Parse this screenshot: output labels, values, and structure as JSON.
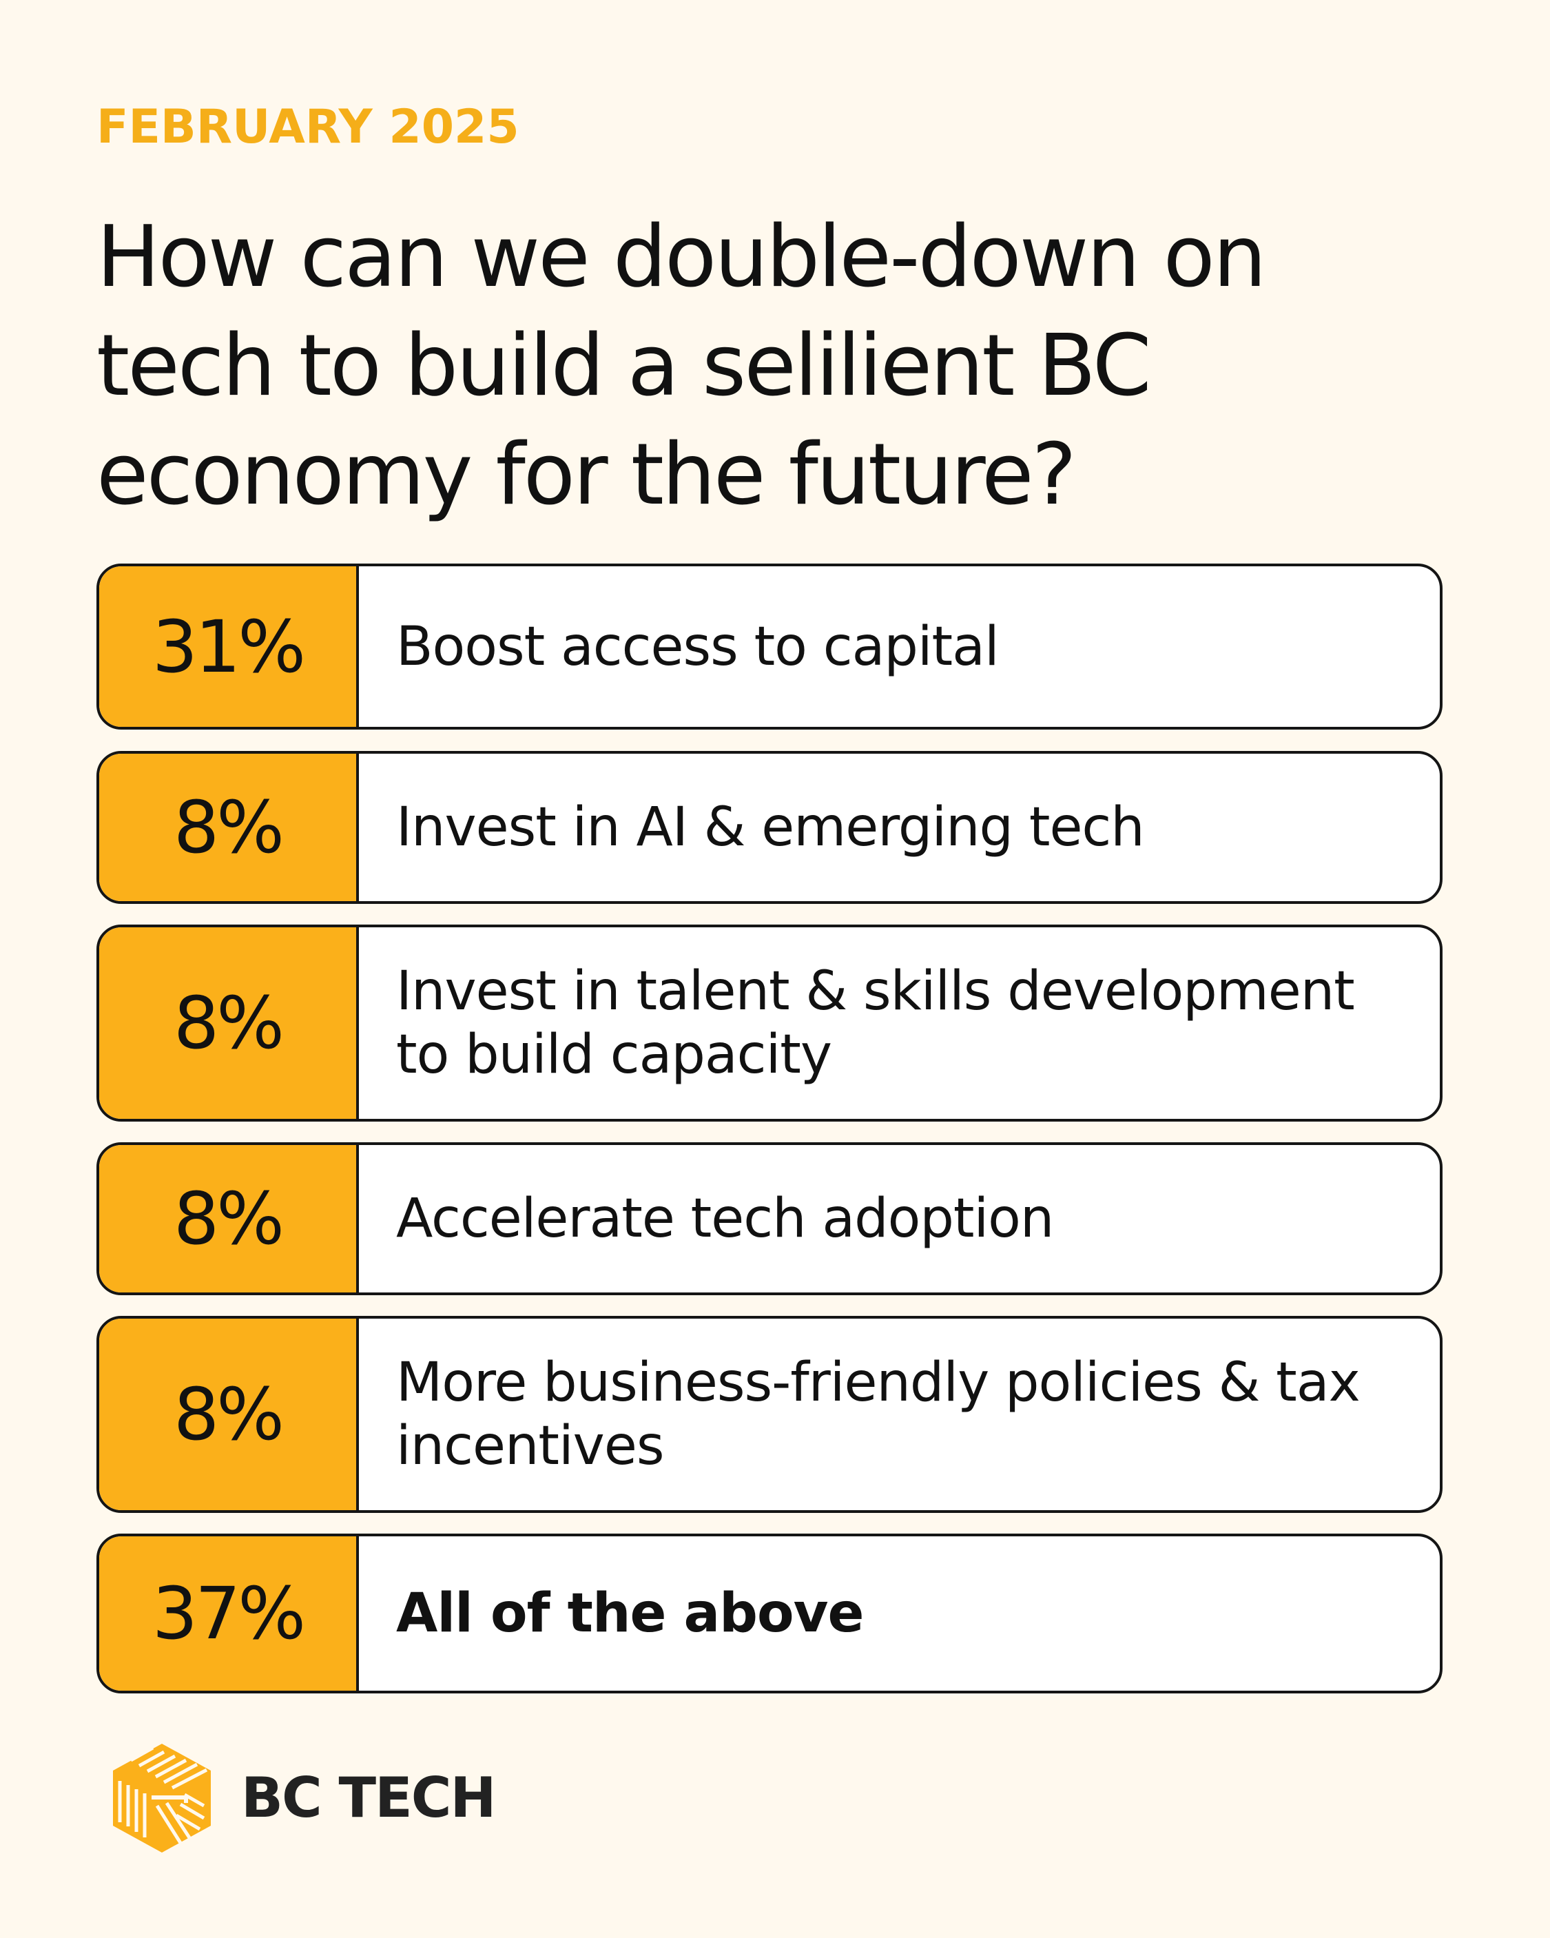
{
  "header": {
    "date": "FEBRUARY 2025",
    "title": "How can we double-down on tech to build a selilient BC economy for the future?"
  },
  "chart_data": {
    "type": "table",
    "title": "How can we double-down on tech to build a selilient BC economy for the future?",
    "columns": [
      "percent",
      "option"
    ],
    "rows": [
      {
        "percent_label": "31%",
        "value": 31,
        "label": "Boost access to capital",
        "bold": false
      },
      {
        "percent_label": "8%",
        "value": 8,
        "label": "Invest in AI & emerging tech",
        "bold": false
      },
      {
        "percent_label": "8%",
        "value": 8,
        "label": "Invest in talent & skills development to build capacity",
        "bold": false
      },
      {
        "percent_label": "8%",
        "value": 8,
        "label": "Accelerate tech adoption",
        "bold": false
      },
      {
        "percent_label": "8%",
        "value": 8,
        "label": "More business-friendly policies & tax incentives",
        "bold": false
      },
      {
        "percent_label": "37%",
        "value": 37,
        "label": "All of the above",
        "bold": true
      }
    ]
  },
  "brand": {
    "name": "BC TECH",
    "logo_icon": "bc-tech-hexagon-logo-icon"
  },
  "colors": {
    "background": "#FFF9EE",
    "accent": "#FBB01A",
    "date": "#F5AE19",
    "text": "#111111",
    "border": "#151515"
  }
}
